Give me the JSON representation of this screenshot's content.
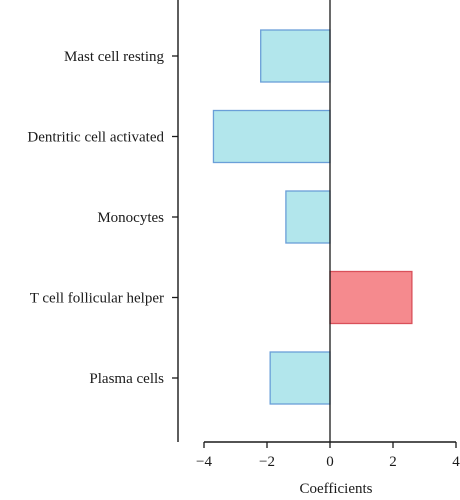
{
  "chart_data": {
    "type": "bar",
    "orientation": "horizontal",
    "categories": [
      "Mast cell resting",
      "Dentritic cell activated",
      "Monocytes",
      "T cell follicular helper",
      "Plasma cells"
    ],
    "values": [
      -2.2,
      -3.7,
      -1.4,
      2.6,
      -1.9
    ],
    "xlabel": "Coefficients",
    "ylabel": "",
    "xlim": [
      -4,
      4
    ],
    "xticks": [
      -4,
      -2,
      0,
      2,
      4
    ],
    "xtick_labels": [
      "−4",
      "−2",
      "0",
      "2",
      "4"
    ],
    "grid": false,
    "colors": {
      "negative_fill": "#b2e6ec",
      "negative_stroke": "#6a9fd8",
      "positive_fill": "#f58a8e",
      "positive_stroke": "#d9505a",
      "axis": "#1a1a1a"
    }
  }
}
